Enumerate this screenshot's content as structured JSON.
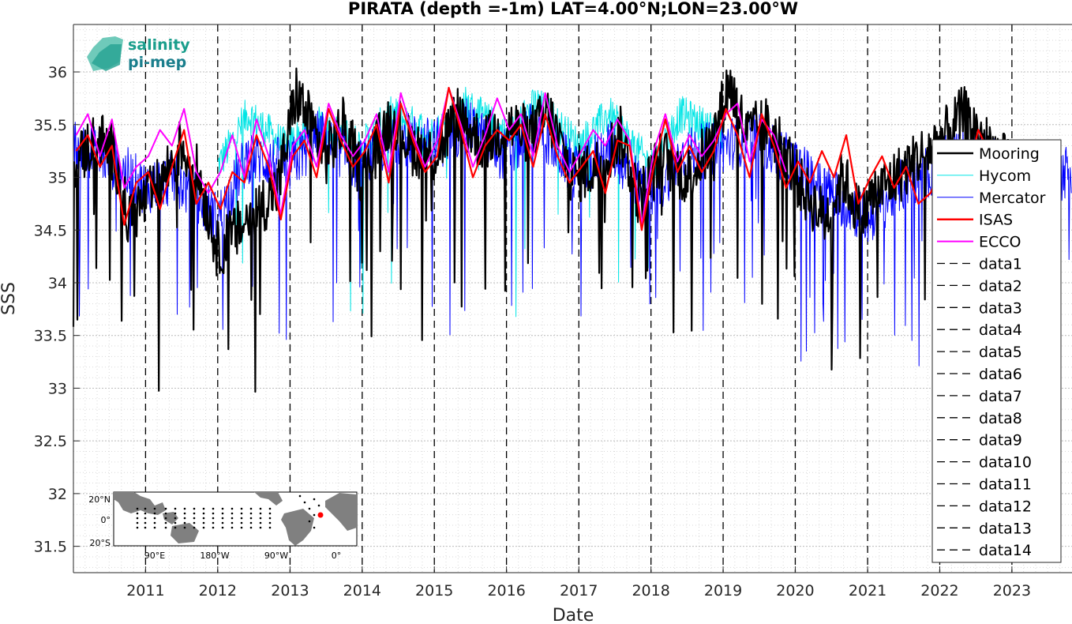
{
  "chart_data": {
    "type": "line",
    "title": "PIRATA (depth =-1m) LAT=4.00°N;LON=23.00°W",
    "xlabel": "Date",
    "ylabel": "SSS",
    "xlim": [
      "2010-01-01",
      "2023-11-01"
    ],
    "ylim": [
      31.25,
      36.45
    ],
    "yticks": [
      31.5,
      32,
      32.5,
      33,
      33.5,
      34,
      34.5,
      35,
      35.5,
      36
    ],
    "ytick_labels": [
      "31.5",
      "32",
      "32.5",
      "33",
      "33.5",
      "34",
      "34.5",
      "35",
      "35.5",
      "36"
    ],
    "xticks": [
      "2011-01-01",
      "2012-01-01",
      "2013-01-01",
      "2014-01-01",
      "2015-01-01",
      "2016-01-01",
      "2017-01-01",
      "2018-01-01",
      "2019-01-01",
      "2020-01-01",
      "2021-01-01",
      "2022-01-01",
      "2023-01-01"
    ],
    "xtick_labels": [
      "2011",
      "2012",
      "2013",
      "2014",
      "2015",
      "2016",
      "2017",
      "2018",
      "2019",
      "2020",
      "2021",
      "2022",
      "2023"
    ],
    "grid": "major and minor, dotted",
    "legend_position": "right",
    "vlines_dashed": [
      "2011-01-01",
      "2012-01-01",
      "2013-01-01",
      "2014-01-01",
      "2015-01-01",
      "2016-01-01",
      "2017-01-01",
      "2018-01-01",
      "2019-01-01",
      "2020-01-01",
      "2021-01-01",
      "2022-01-01",
      "2023-01-01"
    ],
    "series": [
      {
        "name": "Mooring",
        "color": "#000000",
        "x": [
          "2010-01-01",
          "2010-05-01",
          "2010-08-01",
          "2010-10-01",
          "2011-03-01",
          "2011-07-01",
          "2011-10-01",
          "2012-01-01",
          "2012-11-01",
          "2013-02-01",
          "2013-07-01",
          "2013-10-01",
          "2014-01-01",
          "2014-06-01",
          "2014-09-01",
          "2015-01-01",
          "2015-05-01",
          "2015-09-01",
          "2016-01-01",
          "2016-05-01",
          "2016-08-01",
          "2016-12-01",
          "2017-04-01",
          "2017-08-01",
          "2017-11-01",
          "2018-03-01",
          "2018-07-01",
          "2018-11-01",
          "2019-02-01",
          "2019-05-01",
          "2019-08-01",
          "2019-11-01",
          "2020-02-01",
          "2020-06-01",
          "2020-09-01",
          "2020-12-01",
          "2021-01-15",
          "2022-02-01",
          "2022-05-01",
          "2022-09-01",
          "2022-12-15"
        ],
        "y": [
          35.1,
          35.4,
          35.2,
          34.6,
          34.9,
          35.3,
          35.0,
          34.3,
          34.9,
          35.8,
          35.2,
          35.5,
          35.0,
          35.6,
          35.3,
          35.2,
          35.6,
          35.3,
          35.5,
          35.4,
          35.6,
          35.0,
          35.1,
          35.4,
          34.8,
          35.2,
          35.0,
          35.3,
          35.9,
          35.4,
          35.5,
          35.3,
          34.9,
          34.6,
          35.0,
          34.6,
          34.8,
          35.4,
          35.6,
          35.3,
          35.1
        ]
      },
      {
        "name": "Hycom",
        "color": "#00e5e5",
        "x": [
          "2012-01-01",
          "2012-06-01",
          "2012-12-01",
          "2013-06-01",
          "2014-01-01",
          "2014-06-01",
          "2015-01-01",
          "2015-06-01",
          "2016-01-01",
          "2016-06-01",
          "2017-01-01",
          "2017-06-01",
          "2018-01-01",
          "2018-06-01",
          "2018-12-31"
        ],
        "y": [
          35.1,
          35.6,
          35.3,
          35.5,
          35.3,
          35.6,
          35.4,
          35.7,
          35.4,
          35.7,
          35.3,
          35.6,
          35.1,
          35.6,
          35.4
        ]
      },
      {
        "name": "Mercator",
        "color": "#0000ff",
        "x": [
          "2010-01-01",
          "2010-06-01",
          "2011-01-01",
          "2011-06-01",
          "2012-01-01",
          "2012-06-01",
          "2013-01-01",
          "2013-06-01",
          "2014-01-01",
          "2014-06-01",
          "2015-01-01",
          "2015-06-01",
          "2016-01-01",
          "2016-06-01",
          "2017-01-01",
          "2017-06-01",
          "2018-01-01",
          "2018-06-01",
          "2019-01-01",
          "2019-06-01",
          "2020-01-01",
          "2020-06-01",
          "2021-01-01",
          "2021-06-01",
          "2022-01-01",
          "2022-06-01",
          "2023-01-01",
          "2023-06-01",
          "2023-10-31"
        ],
        "y": [
          35.3,
          35.2,
          34.9,
          35.0,
          34.6,
          35.2,
          35.1,
          35.4,
          35.1,
          35.4,
          35.3,
          35.5,
          35.2,
          35.5,
          35.0,
          35.3,
          34.8,
          35.2,
          35.3,
          35.4,
          35.1,
          34.9,
          34.6,
          34.9,
          35.1,
          35.3,
          35.0,
          34.9,
          35.1
        ]
      },
      {
        "name": "ISAS",
        "color": "#ff0000",
        "x": [
          "2010-01-15",
          "2010-03-15",
          "2010-05-15",
          "2010-07-15",
          "2010-09-15",
          "2010-11-15",
          "2011-01-15",
          "2011-03-15",
          "2011-05-15",
          "2011-07-15",
          "2011-09-15",
          "2011-11-15",
          "2012-01-15",
          "2012-03-15",
          "2012-05-15",
          "2012-07-15",
          "2012-09-15",
          "2012-11-15",
          "2013-01-15",
          "2013-03-15",
          "2013-05-15",
          "2013-07-15",
          "2013-09-15",
          "2013-11-15",
          "2014-01-15",
          "2014-03-15",
          "2014-05-15",
          "2014-07-15",
          "2014-09-15",
          "2014-11-15",
          "2015-01-15",
          "2015-03-15",
          "2015-05-15",
          "2015-07-15",
          "2015-09-15",
          "2015-11-15",
          "2016-01-15",
          "2016-03-15",
          "2016-05-15",
          "2016-07-15",
          "2016-09-15",
          "2016-11-15",
          "2017-01-15",
          "2017-03-15",
          "2017-05-15",
          "2017-07-15",
          "2017-09-15",
          "2017-11-15",
          "2018-01-15",
          "2018-03-15",
          "2018-05-15",
          "2018-07-15",
          "2018-09-15",
          "2018-11-15",
          "2019-01-15",
          "2019-03-15",
          "2019-05-15",
          "2019-07-15",
          "2019-09-15",
          "2019-11-15",
          "2020-01-15",
          "2020-03-15",
          "2020-05-15",
          "2020-07-15",
          "2020-09-15",
          "2020-11-15",
          "2021-01-15",
          "2021-03-15",
          "2021-05-15",
          "2021-07-15",
          "2021-09-15",
          "2021-11-15",
          "2022-01-15",
          "2022-03-15",
          "2022-05-15",
          "2022-07-15",
          "2022-09-15",
          "2022-11-15"
        ],
        "y": [
          35.25,
          35.4,
          35.1,
          35.3,
          34.55,
          34.95,
          35.05,
          34.7,
          35.1,
          35.45,
          34.75,
          34.95,
          34.7,
          35.05,
          34.95,
          35.4,
          35.1,
          34.6,
          35.2,
          35.35,
          35.0,
          35.65,
          35.35,
          35.1,
          35.25,
          35.5,
          34.95,
          35.7,
          35.35,
          35.05,
          35.2,
          35.85,
          35.45,
          35.0,
          35.3,
          35.45,
          35.35,
          35.5,
          35.1,
          35.6,
          35.2,
          34.95,
          35.1,
          35.25,
          34.85,
          35.35,
          35.3,
          34.5,
          35.1,
          35.55,
          35.05,
          35.3,
          35.05,
          35.25,
          35.65,
          35.4,
          35.0,
          35.6,
          35.3,
          34.9,
          35.15,
          34.95,
          35.25,
          35.0,
          35.4,
          34.75,
          35.0,
          35.2,
          34.9,
          35.1,
          34.75,
          34.85,
          35.1,
          35.3,
          35.0,
          35.45,
          35.2,
          35.1
        ]
      },
      {
        "name": "ECCO",
        "color": "#ff00ff",
        "x": [
          "2010-01-15",
          "2010-03-15",
          "2010-05-15",
          "2010-07-15",
          "2010-09-15",
          "2010-11-15",
          "2011-01-15",
          "2011-03-15",
          "2011-05-15",
          "2011-07-15",
          "2011-09-15",
          "2011-11-15",
          "2012-01-15",
          "2012-03-15",
          "2012-05-15",
          "2012-07-15",
          "2012-09-15",
          "2012-11-15",
          "2013-01-15",
          "2013-03-15",
          "2013-05-15",
          "2013-07-15",
          "2013-09-15",
          "2013-11-15",
          "2014-01-15",
          "2014-03-15",
          "2014-05-15",
          "2014-07-15",
          "2014-09-15",
          "2014-11-15",
          "2015-01-15",
          "2015-03-15",
          "2015-05-15",
          "2015-07-15",
          "2015-09-15",
          "2015-11-15",
          "2016-01-15",
          "2016-03-15",
          "2016-05-15",
          "2016-07-15",
          "2016-09-15",
          "2016-11-15",
          "2017-01-15",
          "2017-03-15",
          "2017-05-15",
          "2017-07-15",
          "2017-09-15",
          "2017-11-15",
          "2018-01-15",
          "2018-03-15",
          "2018-05-15",
          "2018-07-15",
          "2018-09-15",
          "2018-11-15",
          "2019-01-15",
          "2019-03-15",
          "2019-05-15",
          "2019-07-15",
          "2019-09-15",
          "2019-11-15"
        ],
        "y": [
          35.4,
          35.6,
          35.2,
          35.55,
          34.9,
          35.1,
          35.2,
          35.45,
          35.3,
          35.65,
          35.05,
          34.85,
          35.05,
          35.4,
          35.0,
          35.55,
          35.2,
          34.65,
          35.3,
          35.45,
          35.1,
          35.7,
          35.4,
          35.2,
          35.35,
          35.6,
          35.05,
          35.8,
          35.4,
          35.1,
          35.35,
          35.85,
          35.5,
          35.1,
          35.4,
          35.75,
          35.45,
          35.6,
          35.2,
          35.8,
          35.3,
          35.05,
          35.25,
          35.45,
          35.3,
          35.55,
          35.35,
          34.55,
          35.25,
          35.6,
          35.15,
          35.4,
          35.2,
          35.35,
          35.6,
          35.7,
          35.15,
          35.55,
          35.4,
          35.05
        ]
      },
      {
        "name": "data1",
        "color": "#000000"
      },
      {
        "name": "data2",
        "color": "#000000"
      },
      {
        "name": "data3",
        "color": "#000000"
      },
      {
        "name": "data4",
        "color": "#000000"
      },
      {
        "name": "data5",
        "color": "#000000"
      },
      {
        "name": "data6",
        "color": "#000000"
      },
      {
        "name": "data7",
        "color": "#000000"
      },
      {
        "name": "data8",
        "color": "#000000"
      },
      {
        "name": "data9",
        "color": "#000000"
      },
      {
        "name": "data10",
        "color": "#000000"
      },
      {
        "name": "data11",
        "color": "#000000"
      },
      {
        "name": "data12",
        "color": "#000000"
      },
      {
        "name": "data13",
        "color": "#000000"
      },
      {
        "name": "data14",
        "color": "#000000"
      }
    ]
  },
  "logo": {
    "line1": "salinity",
    "line2": "pi-mep",
    "color": "#1a9e8c"
  },
  "inset_map": {
    "lat_labels": [
      "20°N",
      "0°",
      "20°S"
    ],
    "lon_labels": [
      "90°E",
      "180°W",
      "90°W",
      "0°"
    ],
    "marker_color": "#ff0000",
    "land_color": "#808080"
  }
}
